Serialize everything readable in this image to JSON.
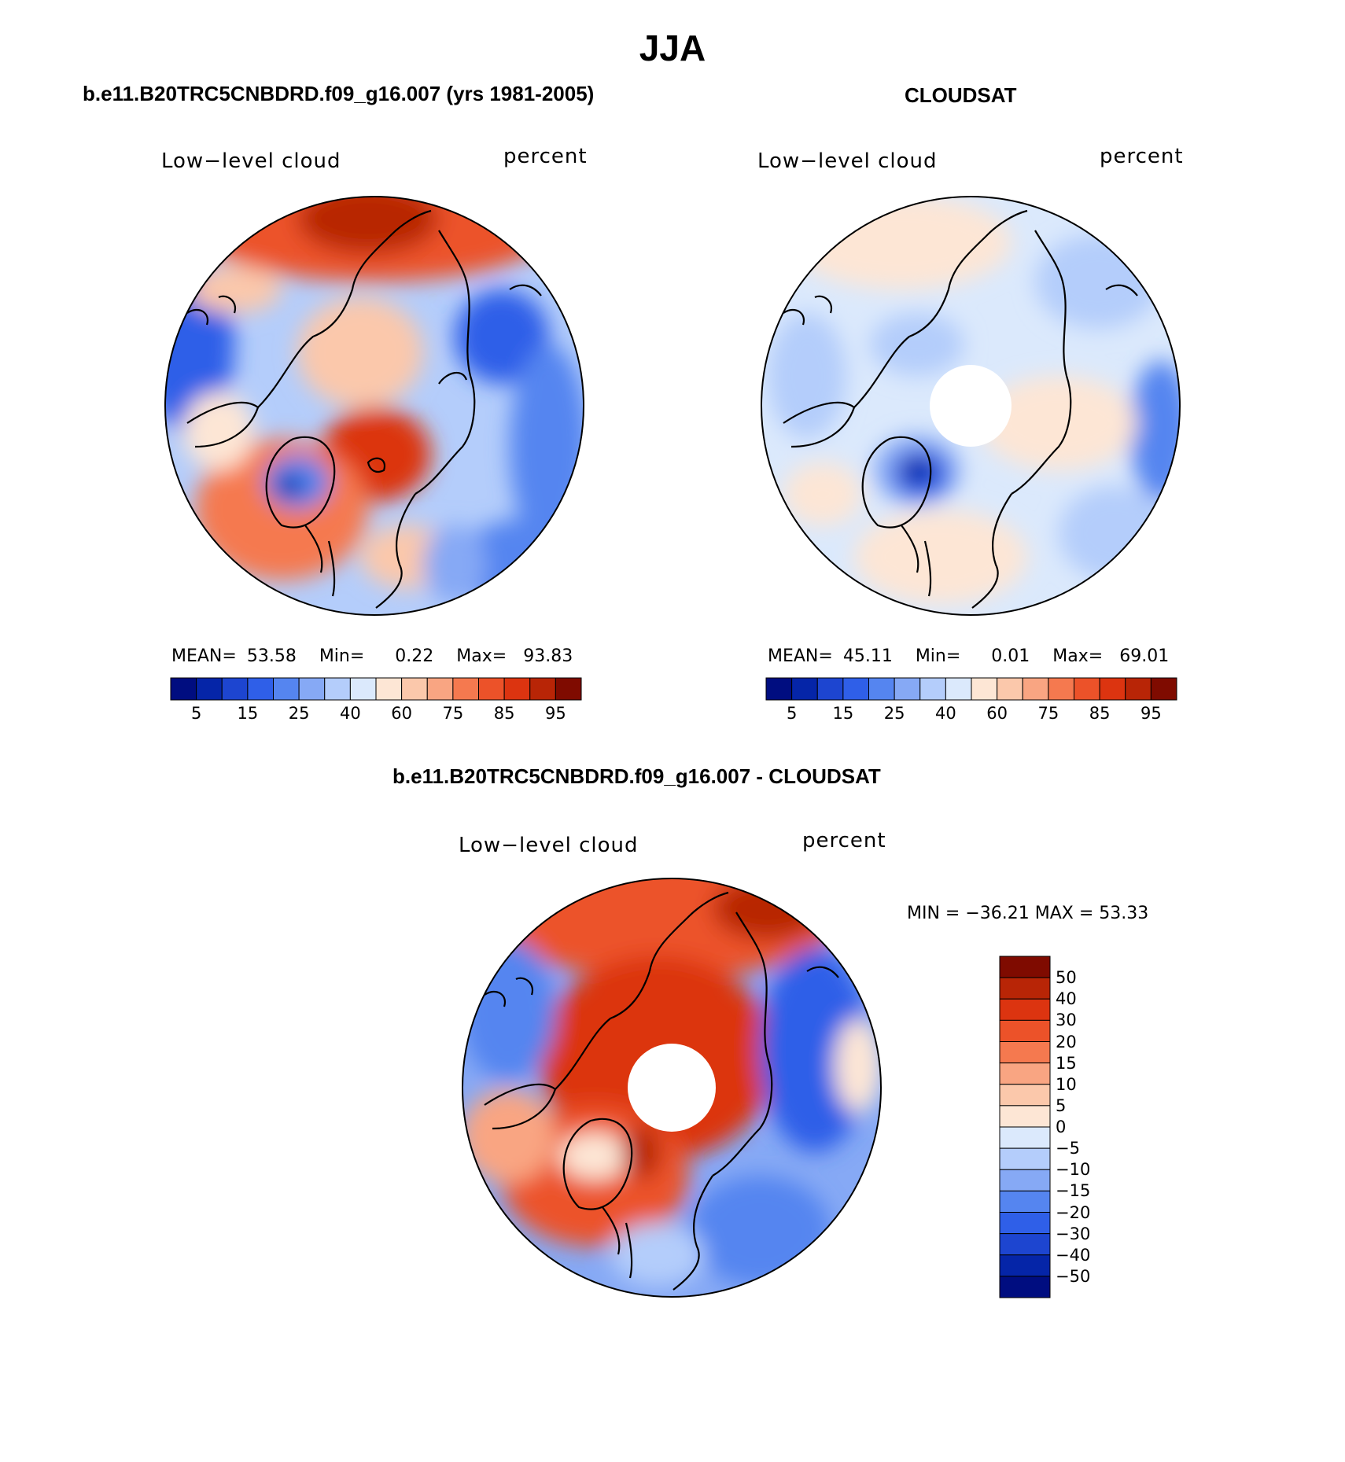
{
  "figure_title": "JJA",
  "panels": [
    {
      "title": "b.e11.B20TRC5CNBDRD.f09_g16.007 (yrs 1981-2005)",
      "variable_label": "Low−level cloud",
      "units_label": "percent",
      "stats": {
        "mean_label": "MEAN=",
        "mean": "53.58",
        "min_label": "Min=",
        "min": "0.22",
        "max_label": "Max=",
        "max": "93.83"
      }
    },
    {
      "title": "CLOUDSAT",
      "variable_label": "Low−level cloud",
      "units_label": "percent",
      "stats": {
        "mean_label": "MEAN=",
        "mean": "45.11",
        "min_label": "Min=",
        "min": "0.01",
        "max_label": "Max=",
        "max": "69.01"
      }
    },
    {
      "title": "b.e11.B20TRC5CNBDRD.f09_g16.007 - CLOUDSAT",
      "variable_label": "Low−level cloud",
      "units_label": "percent",
      "minmax_text": "MIN = −36.21  MAX =   53.33"
    }
  ],
  "colorbar_abs": {
    "tick_labels": [
      "5",
      "15",
      "25",
      "40",
      "60",
      "75",
      "85",
      "95"
    ],
    "colors": [
      "#000d80",
      "#0525a8",
      "#1d45d0",
      "#2f5fe8",
      "#5585f0",
      "#86a9f5",
      "#b4cdfb",
      "#dbe9fc",
      "#fde6d5",
      "#fbc8ab",
      "#f9a582",
      "#f5794f",
      "#ec5229",
      "#dc3410",
      "#b82506",
      "#7f0b00"
    ]
  },
  "colorbar_diff": {
    "tick_labels": [
      "50",
      "40",
      "30",
      "20",
      "15",
      "10",
      "5",
      "0",
      "−5",
      "−10",
      "−15",
      "−20",
      "−30",
      "−40",
      "−50"
    ],
    "colors_top_to_bottom": [
      "#7f0b00",
      "#b82506",
      "#dc3410",
      "#ec5229",
      "#f5794f",
      "#f9a582",
      "#fbc8ab",
      "#fde6d5",
      "#dbe9fc",
      "#b4cdfb",
      "#86a9f5",
      "#5585f0",
      "#2f5fe8",
      "#1d45d0",
      "#0525a8",
      "#000d80"
    ]
  }
}
